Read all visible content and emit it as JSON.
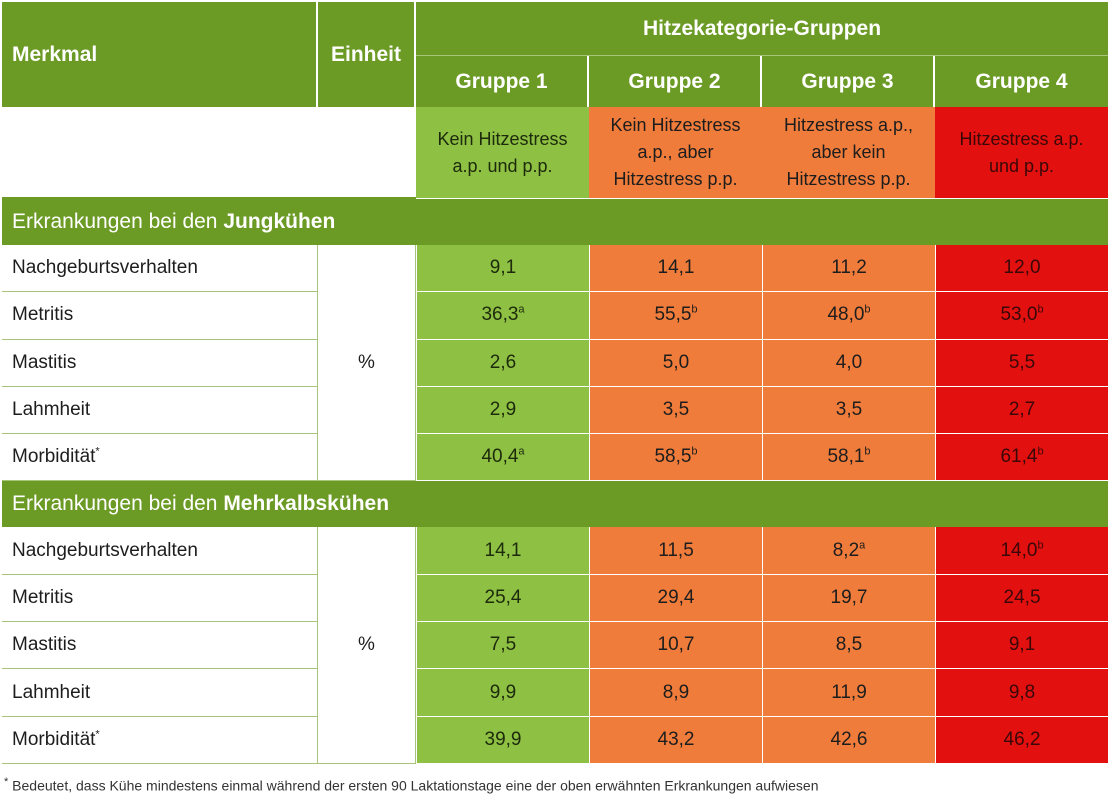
{
  "header": {
    "merkmal": "Merkmal",
    "einheit": "Einheit",
    "group_title": "Hitzekategorie-Gruppen",
    "groups": [
      "Gruppe 1",
      "Gruppe 2",
      "Gruppe 3",
      "Gruppe 4"
    ],
    "descriptions": [
      [
        "Kein Hitzestress",
        "a.p. und p.p."
      ],
      [
        "Kein Hitzestress",
        "a.p., aber",
        "Hitzestress p.p."
      ],
      [
        "Hitzestress a.p.,",
        "aber kein",
        "Hitzestress p.p."
      ],
      [
        "Hitzestress a.p.",
        "und p.p."
      ]
    ]
  },
  "colors": {
    "header_green": "#6b9a25",
    "group1": "#8dc043",
    "group2": "#ef7c3b",
    "group3": "#ef7c3b",
    "group4": "#e2100f"
  },
  "sections": [
    {
      "title_prefix": "Erkrankungen bei den ",
      "title_bold": "Jungkühen",
      "unit": "%",
      "rows": [
        {
          "name": "Nachgeburtsverhalten",
          "name_sup": "",
          "values": [
            [
              "9,1",
              ""
            ],
            [
              "14,1",
              ""
            ],
            [
              "11,2",
              ""
            ],
            [
              "12,0",
              ""
            ]
          ]
        },
        {
          "name": "Metritis",
          "name_sup": "",
          "values": [
            [
              "36,3",
              "a"
            ],
            [
              "55,5",
              "b"
            ],
            [
              "48,0",
              "b"
            ],
            [
              "53,0",
              "b"
            ]
          ]
        },
        {
          "name": "Mastitis",
          "name_sup": "",
          "values": [
            [
              "2,6",
              ""
            ],
            [
              "5,0",
              ""
            ],
            [
              "4,0",
              ""
            ],
            [
              "5,5",
              ""
            ]
          ]
        },
        {
          "name": "Lahmheit",
          "name_sup": "",
          "values": [
            [
              "2,9",
              ""
            ],
            [
              "3,5",
              ""
            ],
            [
              "3,5",
              ""
            ],
            [
              "2,7",
              ""
            ]
          ]
        },
        {
          "name": "Morbidität",
          "name_sup": "*",
          "values": [
            [
              "40,4",
              "a"
            ],
            [
              "58,5",
              "b"
            ],
            [
              "58,1",
              "b"
            ],
            [
              "61,4",
              "b"
            ]
          ]
        }
      ]
    },
    {
      "title_prefix": "Erkrankungen bei den ",
      "title_bold": "Mehrkalbskühen",
      "unit": "%",
      "rows": [
        {
          "name": "Nachgeburtsverhalten",
          "name_sup": "",
          "values": [
            [
              "14,1",
              ""
            ],
            [
              "11,5",
              ""
            ],
            [
              "8,2",
              "a"
            ],
            [
              "14,0",
              "b"
            ]
          ]
        },
        {
          "name": "Metritis",
          "name_sup": "",
          "values": [
            [
              "25,4",
              ""
            ],
            [
              "29,4",
              ""
            ],
            [
              "19,7",
              ""
            ],
            [
              "24,5",
              ""
            ]
          ]
        },
        {
          "name": "Mastitis",
          "name_sup": "",
          "values": [
            [
              "7,5",
              ""
            ],
            [
              "10,7",
              ""
            ],
            [
              "8,5",
              ""
            ],
            [
              "9,1",
              ""
            ]
          ]
        },
        {
          "name": "Lahmheit",
          "name_sup": "",
          "values": [
            [
              "9,9",
              ""
            ],
            [
              "8,9",
              ""
            ],
            [
              "11,9",
              ""
            ],
            [
              "9,8",
              ""
            ]
          ]
        },
        {
          "name": "Morbidität",
          "name_sup": "*",
          "values": [
            [
              "39,9",
              ""
            ],
            [
              "43,2",
              ""
            ],
            [
              "42,6",
              ""
            ],
            [
              "46,2",
              ""
            ]
          ]
        }
      ]
    }
  ],
  "footnote": {
    "marker": "*",
    "text": " Bedeutet, dass Kühe mindestens einmal während der ersten 90 Laktationstage eine der oben erwähnten Erkrankungen aufwiesen"
  }
}
